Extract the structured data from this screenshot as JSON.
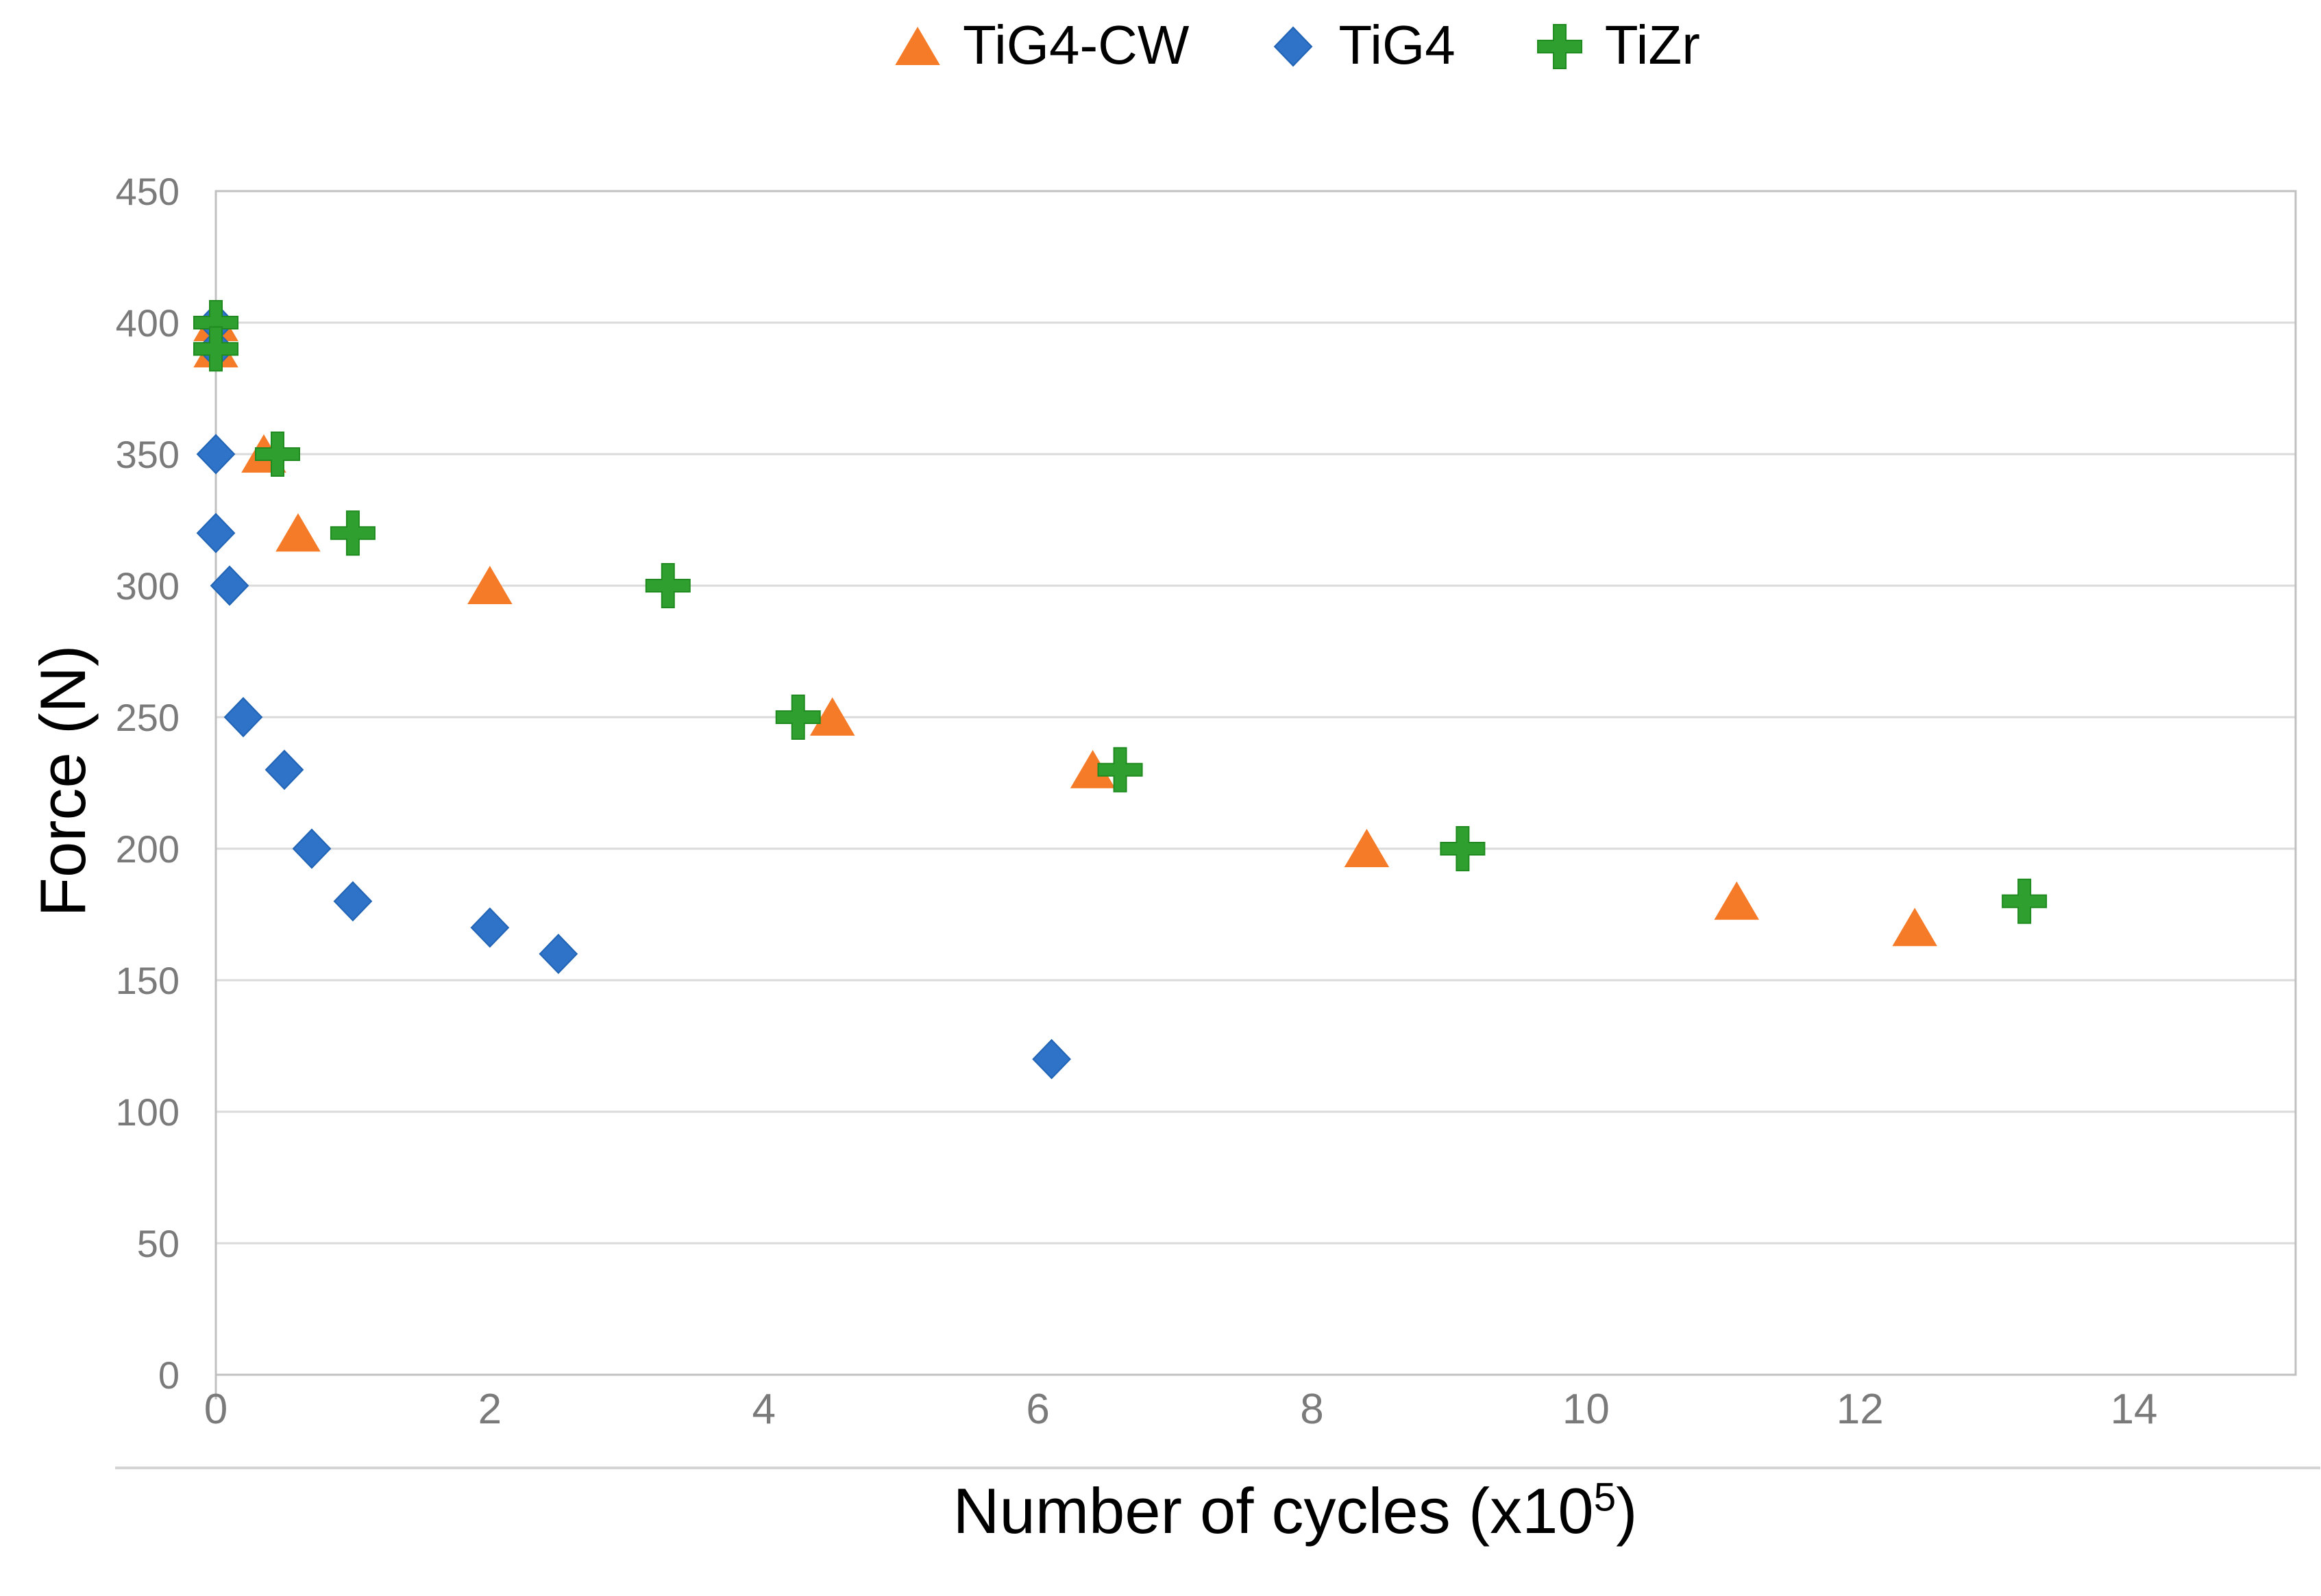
{
  "chart_data": {
    "type": "scatter",
    "title": "",
    "ylabel": "Force (N)",
    "xlabel_main": "Number of cycles (x10",
    "xlabel_sup": "5",
    "xlabel_close": ")",
    "x_ticks": [
      0,
      2,
      4,
      6,
      8,
      10,
      12,
      14
    ],
    "y_ticks": [
      0,
      50,
      100,
      150,
      200,
      250,
      300,
      350,
      400,
      450
    ],
    "xlim": [
      0,
      15.18
    ],
    "ylim": [
      0,
      450
    ],
    "grid": "horizontal",
    "legend_position": "top-center",
    "series": [
      {
        "name": "TiG4-CW",
        "marker": "triangle",
        "color": "#F57B28",
        "edge": "#F57B28",
        "points": [
          [
            0,
            400
          ],
          [
            0,
            390
          ],
          [
            0.35,
            350
          ],
          [
            0.6,
            320
          ],
          [
            2.0,
            300
          ],
          [
            4.5,
            250
          ],
          [
            6.4,
            230
          ],
          [
            8.4,
            200
          ],
          [
            11.1,
            180
          ],
          [
            12.4,
            170
          ]
        ]
      },
      {
        "name": "TiG4",
        "marker": "diamond",
        "color": "#2E73C8",
        "edge": "#2163B4",
        "points": [
          [
            0,
            400
          ],
          [
            0,
            390
          ],
          [
            0,
            350
          ],
          [
            0,
            320
          ],
          [
            0.1,
            300
          ],
          [
            0.2,
            250
          ],
          [
            0.5,
            230
          ],
          [
            0.7,
            200
          ],
          [
            1.0,
            180
          ],
          [
            2.0,
            170
          ],
          [
            2.5,
            160
          ],
          [
            6.1,
            120
          ]
        ]
      },
      {
        "name": "TiZr",
        "marker": "plus",
        "color": "#2FA02F",
        "edge": "#1F8A1F",
        "points": [
          [
            0,
            400
          ],
          [
            0,
            390
          ],
          [
            0.45,
            350
          ],
          [
            1.0,
            320
          ],
          [
            3.3,
            300
          ],
          [
            4.25,
            250
          ],
          [
            6.6,
            230
          ],
          [
            9.1,
            200
          ],
          [
            13.2,
            180
          ]
        ]
      }
    ]
  },
  "colors": {
    "grid": "#DADADA",
    "border": "#C0C0C0",
    "tick_text": "#7A7A7A",
    "bottom_rule": "#D4D4D4",
    "background": "#FFFFFF"
  }
}
